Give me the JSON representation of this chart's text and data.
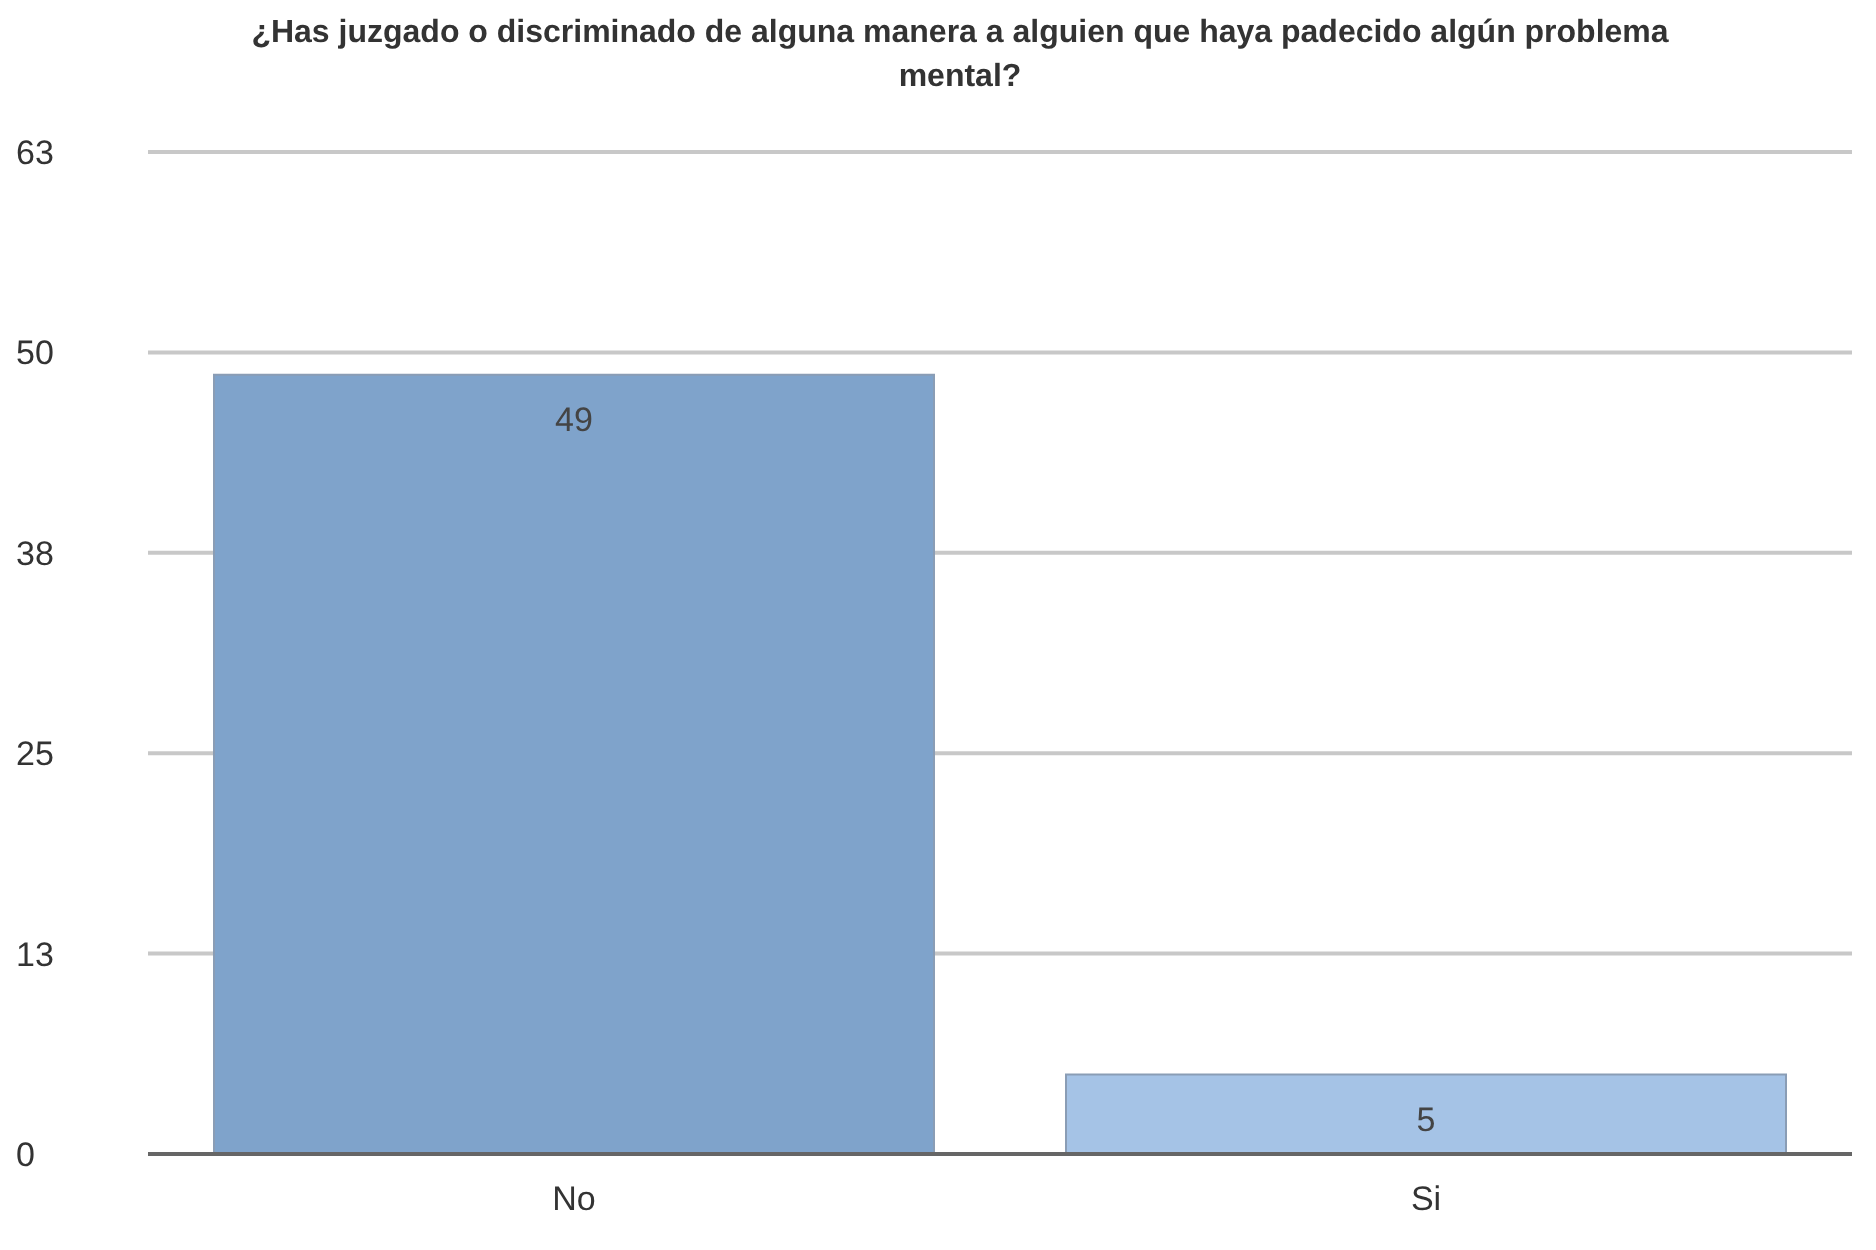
{
  "chart_data": {
    "type": "bar",
    "title": "¿Has juzgado o discriminado de alguna manera a alguien que haya padecido algún problema mental?",
    "categories": [
      "No",
      "Si"
    ],
    "values": [
      49,
      5
    ],
    "colors": [
      "#7fa3cb",
      "#a5c3e6"
    ],
    "ylim": [
      0,
      63
    ],
    "yticks": [
      0,
      {
        "value": 12.6,
        "label": "13"
      },
      {
        "value": 25.2,
        "label": "25"
      },
      {
        "value": 37.8,
        "label": "38"
      },
      {
        "value": 50.4,
        "label": "50"
      },
      63
    ],
    "grid": "y",
    "data_labels": true
  }
}
